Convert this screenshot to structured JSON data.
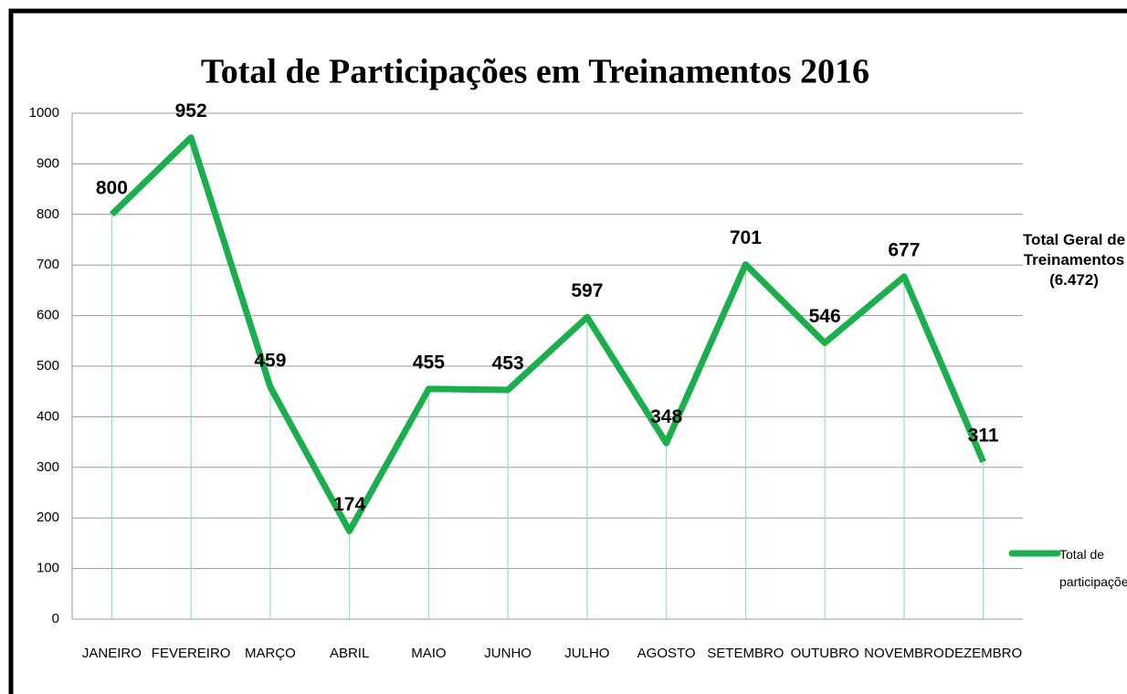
{
  "chart_data": {
    "type": "line",
    "title": "Total de Participações em Treinamentos 2016",
    "annotation": "Total Geral de Treinamentos (6.472)",
    "categories": [
      "JANEIRO",
      "FEVEREIRO",
      "MARÇO",
      "ABRIL",
      "MAIO",
      "JUNHO",
      "JULHO",
      "AGOSTO",
      "SETEMBRO",
      "OUTUBRO",
      "NOVEMBRO",
      "DEZEMBRO"
    ],
    "series": [
      {
        "name": "Total de participações",
        "color": "#1aae4c",
        "values": [
          800,
          952,
          459,
          174,
          455,
          453,
          597,
          348,
          701,
          546,
          677,
          311
        ]
      }
    ],
    "ylim": [
      0,
      1000
    ],
    "yticks": [
      0,
      100,
      200,
      300,
      400,
      500,
      600,
      700,
      800,
      900,
      1000
    ],
    "grid": true,
    "legend": "right"
  }
}
